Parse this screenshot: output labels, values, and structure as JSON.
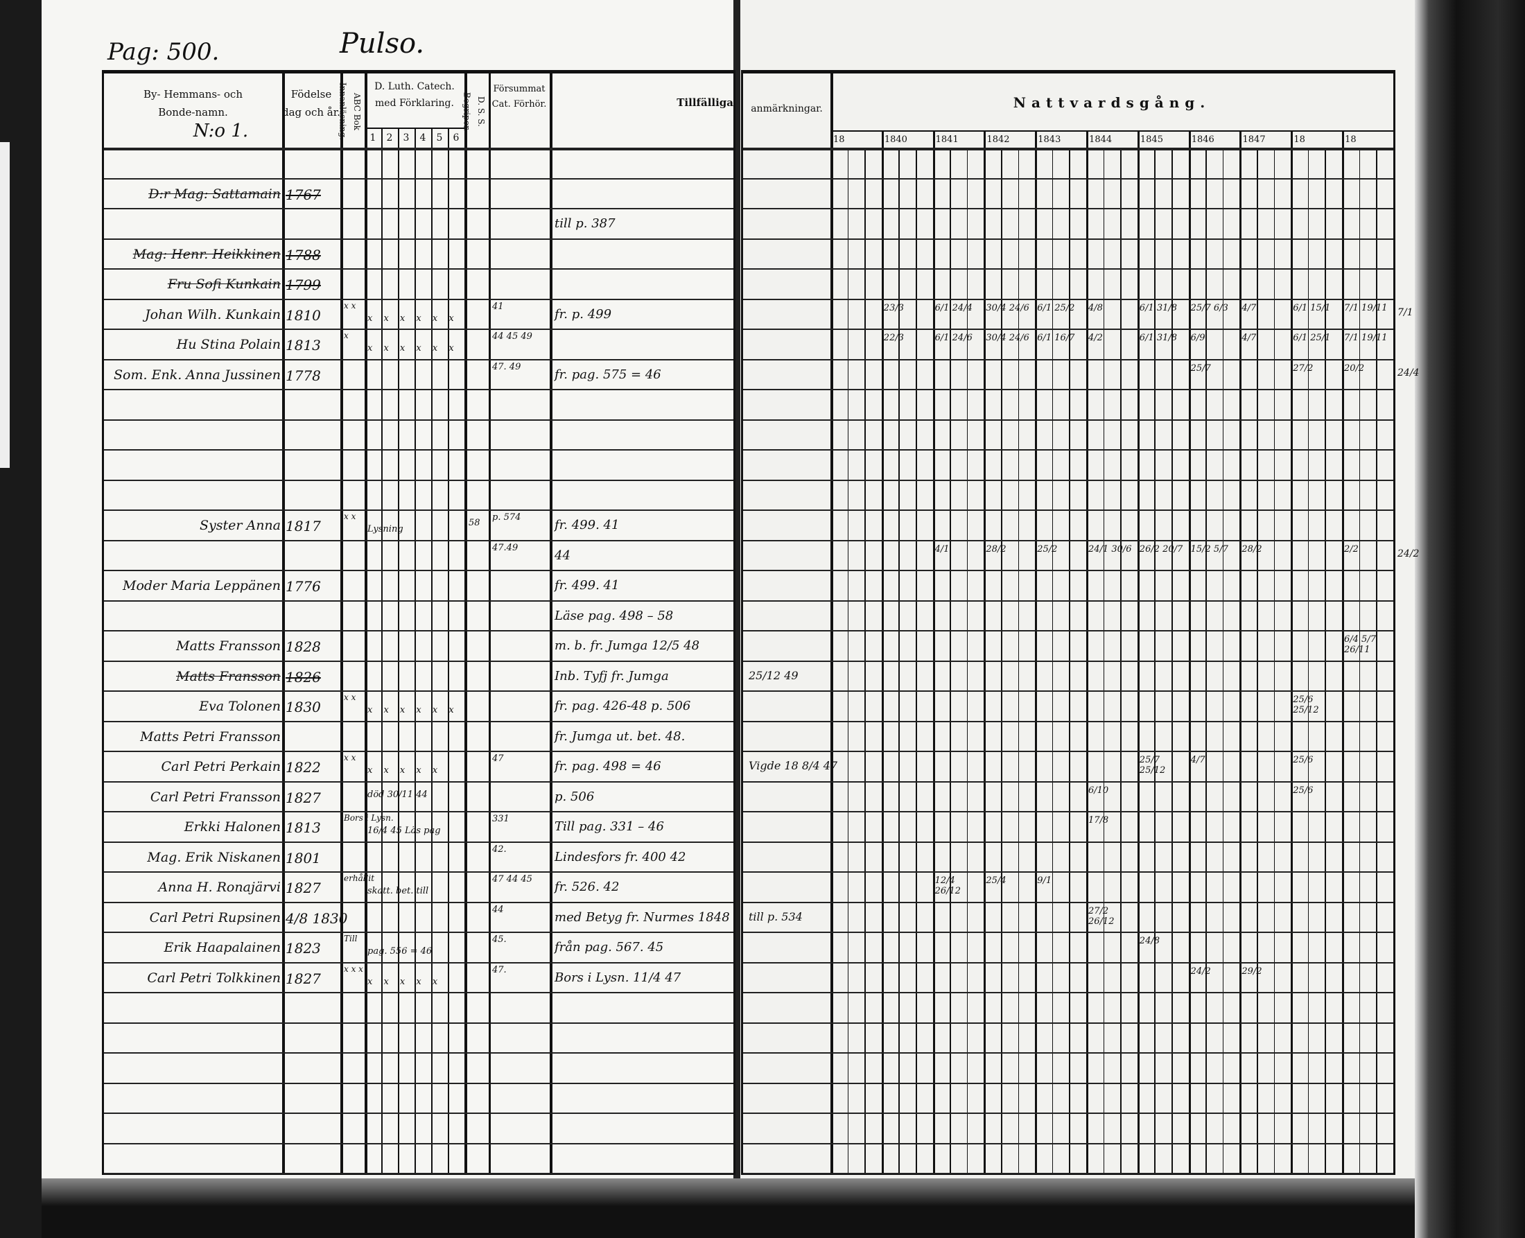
{
  "header": {
    "page_label": "Pag: 500.",
    "parish_label": "Pulso.",
    "number_label": "N:o 1."
  },
  "left_columns": {
    "name": "By- Hemmans- och Bonde-namn.",
    "born": "Födelse dag och år.",
    "abc": "ABC Bok Innanläsning.",
    "catech": "D. Luth. Catech. med Förklaring.",
    "catech_subs": [
      "1",
      "2",
      "3",
      "4",
      "5",
      "6"
    ],
    "dss": "D. S. S. Begriper.",
    "forsummat": "Försummat Cat. Förhör.",
    "notes": "Tillfälliga"
  },
  "right_columns": {
    "remarks": "anmärkningar.",
    "title": "Nattvardsgång.",
    "years": [
      "18",
      "1840",
      "1841",
      "1842",
      "1843",
      "1844",
      "1845",
      "1846",
      "1847",
      "18",
      "18"
    ]
  },
  "rows": [
    {},
    {
      "name": "D:r Mag: Sattamain",
      "born": "1767",
      "struck": true
    },
    {
      "notes": "till p. 387"
    },
    {
      "name": "Mag: Henr. Heikkinen",
      "born": "1788",
      "struck": true
    },
    {
      "name": "Fru Sofi Kunkain",
      "born": "1799",
      "struck": true
    },
    {
      "name": "Johan Wilh. Kunkain",
      "born": "1810",
      "abc": "x x",
      "catech": "x x x x x x",
      "forsummat": "41",
      "notes": "fr. p. 499",
      "communion": [
        "",
        "23/3",
        "6/1 24/4",
        "30/4 24/6",
        "6/1 25/2",
        "4/8",
        "6/1 31/8",
        "25/7 6/3",
        "4/7",
        "6/1 15/1",
        "7/1 19/11"
      ],
      "margin": "7/1"
    },
    {
      "name": "Hu Stina Polain",
      "born": "1813",
      "abc": "x",
      "catech": "x x x x x x",
      "forsummat": "44 45 49",
      "communion": [
        "",
        "22/3",
        "6/1 24/6",
        "30/4 24/6",
        "6/1 16/7",
        "4/2",
        "6/1 31/8",
        "6/9",
        "4/7",
        "6/1 25/1",
        "7/1 19/11"
      ]
    },
    {
      "name": "Som. Enk. Anna Jussinen",
      "born": "1778",
      "forsummat": "47. 49",
      "notes": "fr. pag. 575 = 46",
      "communion": [
        "",
        "",
        "",
        "",
        "",
        "",
        "",
        "25/7",
        "",
        "27/2",
        "20/2"
      ],
      "margin": "24/4"
    },
    {},
    {},
    {},
    {},
    {
      "name": "Syster Anna",
      "born": "1817",
      "abc": "x x",
      "catech": "Lysning",
      "dss": "58",
      "forsummat": "p. 574",
      "notes": "fr. 499. 41"
    },
    {
      "forsummat": "47.49",
      "notes": "44",
      "communion": [
        "",
        "",
        "4/1",
        "28/2",
        "25/2",
        "24/1 30/6",
        "26/2 20/7",
        "15/2 5/7",
        "28/2",
        "",
        "2/2"
      ],
      "margin": "24/2"
    },
    {
      "name": "Moder Maria Leppänen",
      "born": "1776",
      "notes": "fr. 499. 41"
    },
    {
      "notes": "Läse pag. 498 – 58"
    },
    {
      "name": "Matts Fransson",
      "born": "1828",
      "notes": "m. b. fr. Jumga 12/5 48",
      "communion": [
        "",
        "",
        "",
        "",
        "",
        "",
        "",
        "",
        "",
        "",
        "6/4 5/7 26/11"
      ]
    },
    {
      "name": "Matts Fransson",
      "born": "1826",
      "struck": true,
      "notes": "Inb. Tyfj fr. Jumga",
      "remarks": "25/12 49"
    },
    {
      "name": "Eva Tolonen",
      "born": "1830",
      "abc": "x x",
      "catech": "x x x x x x",
      "notes": "fr. pag. 426-48 p. 506",
      "communion": [
        "",
        "",
        "",
        "",
        "",
        "",
        "",
        "",
        "",
        "25/6 25/12",
        ""
      ]
    },
    {
      "name": "Matts Petri Fransson",
      "notes": "fr. Jumga ut. bet. 48."
    },
    {
      "name": "Carl Petri Perkain",
      "born": "1822",
      "abc": "x x",
      "catech": "x x x x x",
      "forsummat": "47",
      "notes": "fr. pag. 498 = 46",
      "remarks": "Vigde 18 8/4 47",
      "communion": [
        "",
        "",
        "",
        "",
        "",
        "",
        "25/7 25/12",
        "4/7",
        "",
        "25/6",
        ""
      ]
    },
    {
      "name": "Carl Petri Fransson",
      "born": "1827",
      "catech": "död 30/11 44",
      "notes": "p. 506",
      "communion": [
        "",
        "",
        "",
        "",
        "",
        "6/10",
        "",
        "",
        "",
        "25/6",
        ""
      ]
    },
    {
      "name": "Erkki Halonen",
      "born": "1813",
      "abc": "Bors i Lysn.",
      "catech": "16/4 45 Läs pag",
      "forsummat": "331",
      "notes": "Till pag. 331 – 46",
      "communion": [
        "",
        "",
        "",
        "",
        "",
        "17/8",
        "",
        "",
        "",
        "",
        ""
      ]
    },
    {
      "name": "Mag. Erik Niskanen",
      "born": "1801",
      "forsummat": "42.",
      "notes": "Lindesfors fr. 400 42"
    },
    {
      "name": "Anna H. Ronajärvi",
      "born": "1827",
      "abc": "erhållit",
      "catech": "skatt. bet. till",
      "forsummat": "47 44 45",
      "notes": "fr. 526. 42",
      "communion": [
        "",
        "",
        "12/4 26/12",
        "25/4",
        "9/1",
        "",
        "",
        "",
        "",
        "",
        ""
      ]
    },
    {
      "name": "Carl Petri Rupsinen",
      "born": "4/8 1830",
      "forsummat": "44",
      "notes": "med Betyg fr. Nurmes 1848",
      "remarks": "till p. 534",
      "communion": [
        "",
        "",
        "",
        "",
        "",
        "27/2 26/12",
        "",
        "",
        "",
        "",
        ""
      ]
    },
    {
      "name": "Erik Haapalainen",
      "born": "1823",
      "abc": "Till",
      "catech": "pag. 556 = 46",
      "forsummat": "45.",
      "notes": "från pag. 567. 45",
      "communion": [
        "",
        "",
        "",
        "",
        "",
        "",
        "24/8",
        "",
        "",
        "",
        ""
      ]
    },
    {
      "name": "Carl Petri Tolkkinen",
      "born": "1827",
      "abc": "x x x",
      "catech": "x x x x x",
      "forsummat": "47.",
      "notes": "Bors i Lysn. 11/4 47",
      "communion": [
        "",
        "",
        "",
        "",
        "",
        "",
        "",
        "24/2",
        "29/2",
        "",
        ""
      ]
    },
    {},
    {},
    {},
    {},
    {},
    {}
  ]
}
